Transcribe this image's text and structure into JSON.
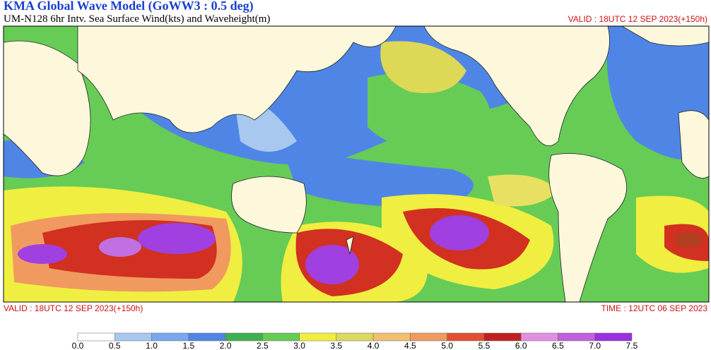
{
  "header": {
    "title": "KMA  Global Wave Model (GoWW3 : 0.5 deg)",
    "subtitle": "UM-N128  6hr Intv. Sea Surface Wind(kts) and Waveheight(m)",
    "valid_top": "VALID : 18UTC 12 SEP 2023(+150h)"
  },
  "footer": {
    "valid_bottom": "VALID : 18UTC 12 SEP 2023(+150h)",
    "time": "TIME : 12UTC 06 SEP 2023"
  },
  "legend": {
    "labels": [
      "0.0",
      "0.5",
      "1.0",
      "1.5",
      "2.0",
      "2.5",
      "3.0",
      "3.5",
      "4.0",
      "4.5",
      "5.0",
      "5.5",
      "6.0",
      "6.5",
      "7.0",
      "7.5"
    ]
  }
}
